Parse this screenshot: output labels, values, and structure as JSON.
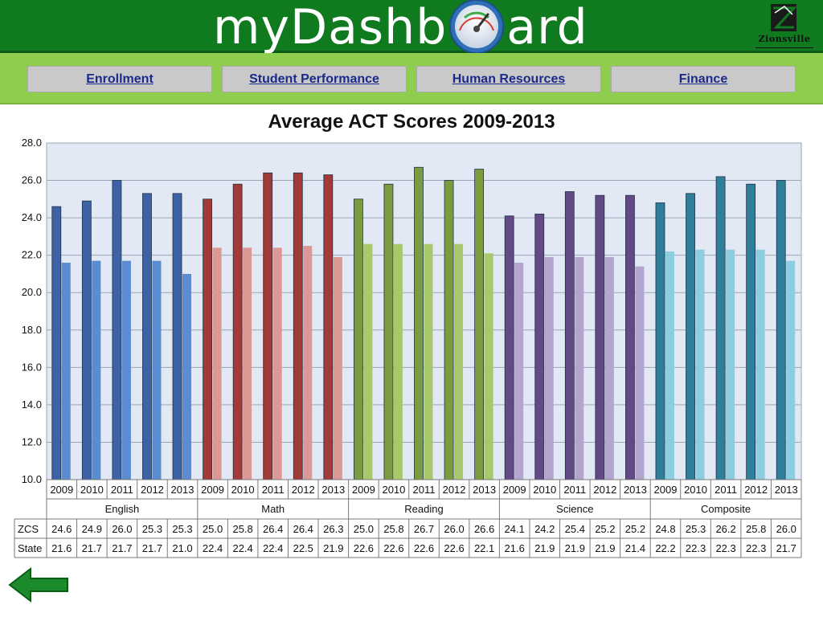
{
  "app": {
    "title_left": "myDashb",
    "title_right": "ard",
    "logo_name": "Zionsville"
  },
  "nav": {
    "items": [
      {
        "label": "Enrollment"
      },
      {
        "label": "Student Performance"
      },
      {
        "label": "Human Resources"
      },
      {
        "label": "Finance"
      }
    ]
  },
  "colors": {
    "header": "#0f7a1e",
    "navbar": "#8fcd4f",
    "nav_text": "#1a2a8a",
    "plot_bg": "#e3e9f4"
  },
  "icons": {
    "gauge": "speedometer-gauge-icon",
    "logo": "zionsville-logo",
    "back": "back-arrow-icon"
  },
  "chart_data": {
    "type": "bar",
    "title": "Average ACT Scores 2009-2013",
    "ylim": [
      10,
      28
    ],
    "y_ticks": [
      "10.0",
      "12.0",
      "14.0",
      "16.0",
      "18.0",
      "20.0",
      "22.0",
      "24.0",
      "26.0",
      "28.0"
    ],
    "grid": true,
    "groups": [
      {
        "name": "English",
        "colors": [
          "#3d62a6",
          "#5a8ccf"
        ]
      },
      {
        "name": "Math",
        "colors": [
          "#a33a37",
          "#dc9895"
        ]
      },
      {
        "name": "Reading",
        "colors": [
          "#7a9b3f",
          "#a8c86c"
        ]
      },
      {
        "name": "Science",
        "colors": [
          "#634a87",
          "#b4a5cf"
        ]
      },
      {
        "name": "Composite",
        "colors": [
          "#2f7f9a",
          "#8ccde0"
        ]
      }
    ],
    "years": [
      "2009",
      "2010",
      "2011",
      "2012",
      "2013"
    ],
    "series": [
      {
        "name": "ZCS",
        "values": [
          "24.6",
          "24.9",
          "26.0",
          "25.3",
          "25.3",
          "25.0",
          "25.8",
          "26.4",
          "26.4",
          "26.3",
          "25.0",
          "25.8",
          "26.7",
          "26.0",
          "26.6",
          "24.1",
          "24.2",
          "25.4",
          "25.2",
          "25.2",
          "24.8",
          "25.3",
          "26.2",
          "25.8",
          "26.0"
        ]
      },
      {
        "name": "State",
        "values": [
          "21.6",
          "21.7",
          "21.7",
          "21.7",
          "21.0",
          "22.4",
          "22.4",
          "22.4",
          "22.5",
          "21.9",
          "22.6",
          "22.6",
          "22.6",
          "22.6",
          "22.1",
          "21.6",
          "21.9",
          "21.9",
          "21.9",
          "21.4",
          "22.2",
          "22.3",
          "22.3",
          "22.3",
          "21.7"
        ]
      }
    ]
  }
}
